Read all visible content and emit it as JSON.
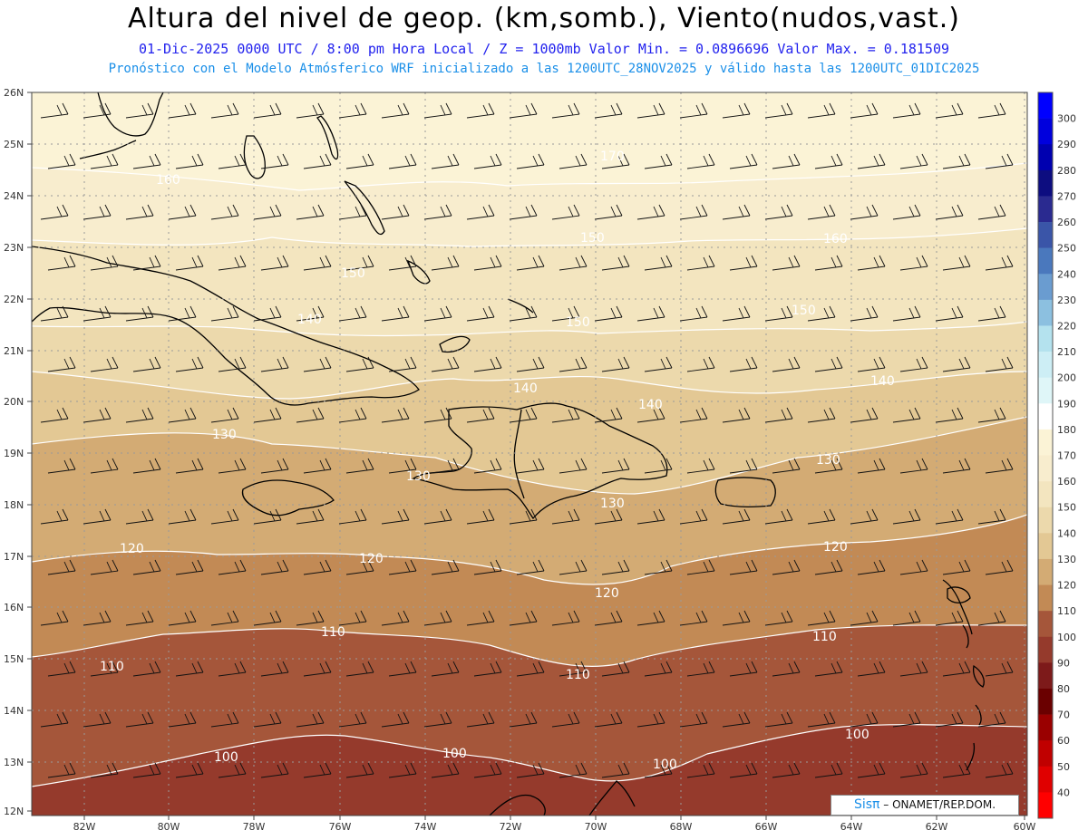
{
  "header": {
    "title": "Altura del nivel de geop. (km,somb.), Viento(nudos,vast.)",
    "subtitle": "01-Dic-2025  0000 UTC / 8:00 pm Hora Local / Z = 1000mb  Valor Min. = 0.0896696  Valor Max. = 0.181509",
    "forecast_note": "Pronóstico con el Modelo Atmósferico WRF inicializado a las 1200UTC_28NOV2025 y válido hasta las  1200UTC_01DIC2025"
  },
  "map": {
    "lat_labels": [
      "26N",
      "25N",
      "24N",
      "23N",
      "22N",
      "21N",
      "20N",
      "19N",
      "18N",
      "17N",
      "16N",
      "15N",
      "14N",
      "13N",
      "12N"
    ],
    "lon_labels": [
      "82W",
      "80W",
      "78W",
      "76W",
      "74W",
      "72W",
      "70W",
      "68W",
      "66W",
      "64W",
      "62W",
      "60W"
    ],
    "bands": [
      {
        "value": 170,
        "color": "#fbf3d6"
      },
      {
        "value": 160,
        "color": "#f8edce"
      },
      {
        "value": 150,
        "color": "#f3e5bf"
      },
      {
        "value": 140,
        "color": "#ecd9ac"
      },
      {
        "value": 130,
        "color": "#e3c894"
      },
      {
        "value": 120,
        "color": "#d3ab74"
      },
      {
        "value": 110,
        "color": "#c28a55"
      },
      {
        "value": 100,
        "color": "#a5563a"
      }
    ],
    "contour_labels": [
      {
        "text": "170"
      },
      {
        "text": "160"
      },
      {
        "text": "160"
      },
      {
        "text": "150"
      },
      {
        "text": "150"
      },
      {
        "text": "150"
      },
      {
        "text": "150"
      },
      {
        "text": "140"
      },
      {
        "text": "140"
      },
      {
        "text": "140"
      },
      {
        "text": "140"
      },
      {
        "text": "130"
      },
      {
        "text": "130"
      },
      {
        "text": "130"
      },
      {
        "text": "130"
      },
      {
        "text": "120"
      },
      {
        "text": "120"
      },
      {
        "text": "120"
      },
      {
        "text": "120"
      },
      {
        "text": "110"
      },
      {
        "text": "110"
      },
      {
        "text": "110"
      },
      {
        "text": "110"
      },
      {
        "text": "100"
      },
      {
        "text": "100"
      },
      {
        "text": "100"
      },
      {
        "text": "100"
      }
    ]
  },
  "colorbar": {
    "levels": [
      {
        "label": "300",
        "color": "#0000ff"
      },
      {
        "label": "290",
        "color": "#0000dd"
      },
      {
        "label": "280",
        "color": "#0000b0"
      },
      {
        "label": "270",
        "color": "#0d0d80"
      },
      {
        "label": "260",
        "color": "#2a2a90"
      },
      {
        "label": "250",
        "color": "#3a55a8"
      },
      {
        "label": "240",
        "color": "#4a78bd"
      },
      {
        "label": "230",
        "color": "#6a9cd0"
      },
      {
        "label": "220",
        "color": "#8cc0e0"
      },
      {
        "label": "210",
        "color": "#b4e2ee"
      },
      {
        "label": "200",
        "color": "#cdeef5"
      },
      {
        "label": "190",
        "color": "#dff6f8"
      },
      {
        "label": "180",
        "color": "#ffffff"
      },
      {
        "label": "170",
        "color": "#fbf3d6"
      },
      {
        "label": "160",
        "color": "#f8edce"
      },
      {
        "label": "150",
        "color": "#f3e5bf"
      },
      {
        "label": "140",
        "color": "#ecd9ac"
      },
      {
        "label": "130",
        "color": "#e3c894"
      },
      {
        "label": "120",
        "color": "#d3ab74"
      },
      {
        "label": "110",
        "color": "#c28a55"
      },
      {
        "label": "100",
        "color": "#a5563a"
      },
      {
        "label": "90",
        "color": "#953a2c"
      },
      {
        "label": "80",
        "color": "#7d1a1a"
      },
      {
        "label": "70",
        "color": "#6a0000"
      },
      {
        "label": "60",
        "color": "#9a0000"
      },
      {
        "label": "50",
        "color": "#c00000"
      },
      {
        "label": "40",
        "color": "#e00000"
      },
      {
        "label": "",
        "color": "#ff0000"
      }
    ]
  },
  "credit": {
    "brand": "Sisπ",
    "org": " – ONAMET/REP.DOM."
  }
}
